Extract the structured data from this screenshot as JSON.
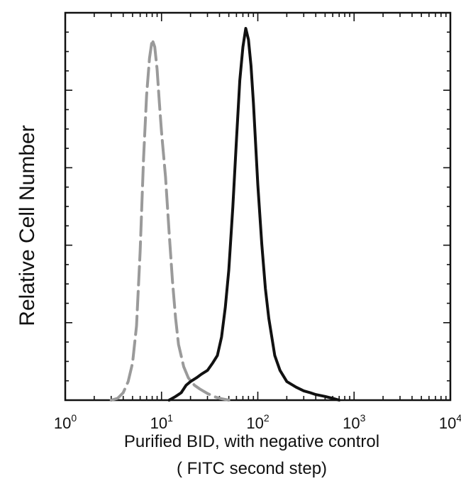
{
  "chart_data": {
    "type": "line",
    "ylabel": "Relative Cell Number",
    "xlabel": "Purified  BID,  with negative control",
    "xlabel_sub": "( FITC second step)",
    "x_scale": "log",
    "xlim": [
      1,
      10000
    ],
    "ylim": [
      0,
      100
    ],
    "x_ticks": [
      {
        "base": "10",
        "exp": "0",
        "value": 1
      },
      {
        "base": "10",
        "exp": "1",
        "value": 10
      },
      {
        "base": "10",
        "exp": "2",
        "value": 100
      },
      {
        "base": "10",
        "exp": "3",
        "value": 1000
      },
      {
        "base": "10",
        "exp": "4",
        "value": 10000
      }
    ],
    "grid": false,
    "legend": "none",
    "series": [
      {
        "style": "dashed",
        "color": "#9a9a9a",
        "x": [
          3.0,
          3.5,
          4.0,
          4.5,
          5.0,
          5.5,
          6.0,
          6.5,
          7.0,
          7.5,
          8.0,
          8.5,
          9.0,
          9.5,
          10,
          11,
          12,
          13,
          14,
          15,
          17,
          19,
          22,
          25,
          30,
          35,
          40,
          50
        ],
        "values": [
          0,
          0.5,
          2,
          5,
          10,
          20,
          40,
          65,
          82,
          92,
          97,
          95,
          89,
          80,
          72,
          60,
          45,
          32,
          22,
          15,
          9,
          6,
          4,
          3,
          1.8,
          1,
          0.5,
          0
        ]
      },
      {
        "style": "solid",
        "color": "#111111",
        "x": [
          12,
          14,
          16,
          18,
          20,
          23,
          26,
          30,
          34,
          38,
          42,
          46,
          50,
          55,
          60,
          65,
          70,
          75,
          80,
          85,
          90,
          100,
          110,
          120,
          130,
          150,
          170,
          200,
          250,
          300,
          350,
          400,
          500,
          600,
          700
        ],
        "values": [
          0,
          1,
          2,
          4,
          5,
          6,
          7,
          8,
          10,
          12,
          17,
          25,
          35,
          52,
          70,
          86,
          95,
          100,
          97,
          90,
          80,
          58,
          42,
          30,
          22,
          12,
          8,
          5,
          3.5,
          2.5,
          2,
          1.5,
          1,
          0.5,
          0
        ]
      }
    ]
  }
}
